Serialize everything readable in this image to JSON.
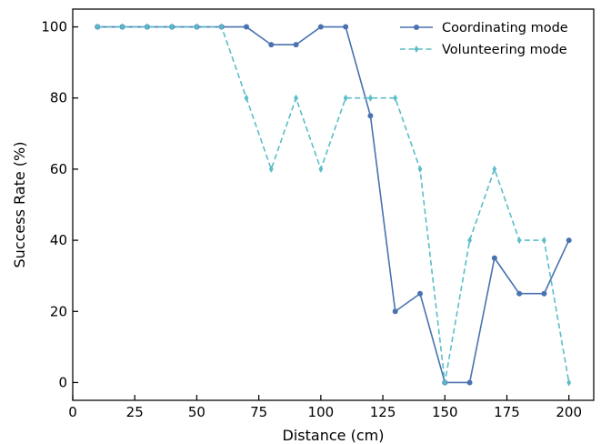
{
  "chart_data": {
    "type": "line",
    "xlabel": "Distance (cm)",
    "ylabel": "Success Rate (%)",
    "xlim": [
      0,
      210
    ],
    "ylim": [
      -5,
      105
    ],
    "xticks": [
      "0",
      "25",
      "50",
      "75",
      "100",
      "125",
      "150",
      "175",
      "200"
    ],
    "yticks": [
      "0",
      "20",
      "40",
      "60",
      "80",
      "100"
    ],
    "grid": false,
    "legend_position": "top-right",
    "x": [
      10,
      20,
      30,
      40,
      50,
      60,
      70,
      80,
      90,
      100,
      110,
      120,
      130,
      140,
      150,
      160,
      170,
      180,
      190,
      200
    ],
    "series": [
      {
        "name": "Coordinating mode",
        "color": "#4a72b0",
        "line_style": "solid",
        "marker": "circle",
        "values": [
          100,
          100,
          100,
          100,
          100,
          100,
          100,
          95,
          95,
          100,
          100,
          75,
          20,
          25,
          0,
          0,
          35,
          25,
          25,
          40
        ]
      },
      {
        "name": "Volunteering mode",
        "color": "#5bbdc9",
        "line_style": "dashed",
        "marker": "thin-diamond",
        "values": [
          100,
          100,
          100,
          100,
          100,
          100,
          80,
          60,
          80,
          60,
          80,
          80,
          80,
          60,
          0,
          40,
          60,
          40,
          40,
          0
        ]
      }
    ]
  }
}
